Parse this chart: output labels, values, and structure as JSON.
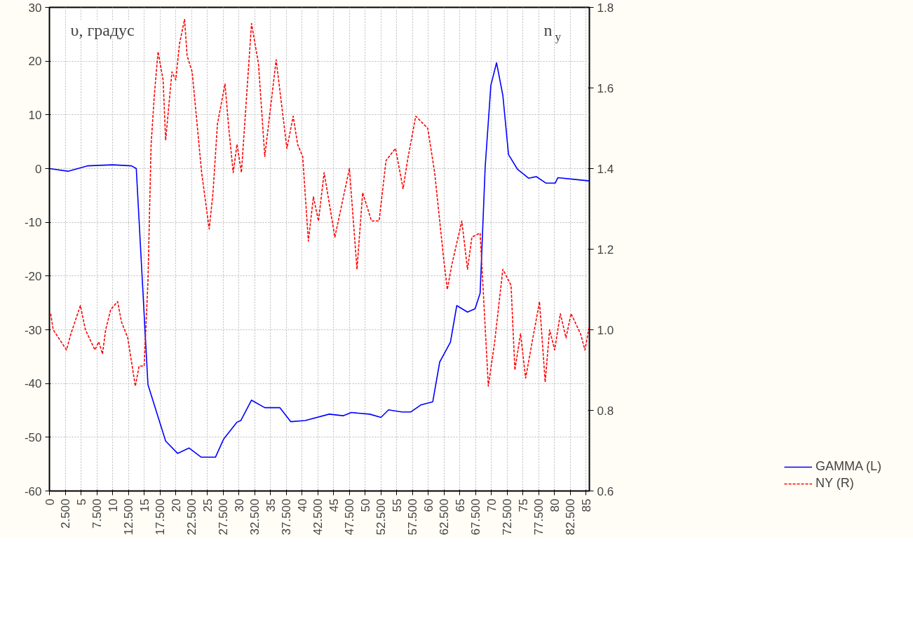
{
  "chart_data": {
    "type": "line",
    "ylabel": "υ, градус",
    "y2label": "n$_{y}$",
    "xlim": [
      0,
      85.5
    ],
    "xticks": [
      0,
      {
        "value": 2.5,
        "label": "2.500"
      },
      5,
      {
        "value": 7.5,
        "label": "7.500"
      },
      10,
      {
        "value": 12.5,
        "label": "12.500"
      },
      15,
      {
        "value": 17.5,
        "label": "17.500"
      },
      20,
      {
        "value": 22.5,
        "label": "22.500"
      },
      25,
      {
        "value": 27.5,
        "label": "27.500"
      },
      30,
      {
        "value": 32.5,
        "label": "32.500"
      },
      35,
      {
        "value": 37.5,
        "label": "37.500"
      },
      40,
      {
        "value": 42.5,
        "label": "42.500"
      },
      45,
      {
        "value": 47.5,
        "label": "47.500"
      },
      50,
      {
        "value": 52.5,
        "label": "52.500"
      },
      55,
      {
        "value": 57.5,
        "label": "57.500"
      },
      60,
      {
        "value": 62.5,
        "label": "62.500"
      },
      65,
      {
        "value": 67.5,
        "label": "67.500"
      },
      70,
      {
        "value": 72.5,
        "label": "72.500"
      },
      75,
      {
        "value": 77.5,
        "label": "77.500"
      },
      80,
      {
        "value": 82.5,
        "label": "82.500"
      },
      85
    ],
    "ylim": [
      -60,
      30
    ],
    "yticks": [
      -60,
      -50,
      -40,
      -30,
      -20,
      -10,
      0,
      10,
      20,
      30
    ],
    "y2lim": [
      0.6,
      1.8
    ],
    "y2ticks": [
      0.6,
      0.8,
      {
        "value": 1.0,
        "label": "1.0"
      },
      1.2,
      1.4,
      1.6,
      1.8
    ],
    "grid": true,
    "legend": "bottom right",
    "series": [
      {
        "name": "GAMMA (L)",
        "color": "#0000ff",
        "line_style": "solid",
        "x": [
          0,
          3,
          6,
          10,
          13,
          13.75,
          15.6,
          18.4,
          20.3,
          22.1,
          24,
          26.3,
          27.6,
          29.7,
          30.3,
          32,
          34.1,
          36.5,
          38.2,
          40.5,
          44.3,
          46.5,
          47.8,
          50.7,
          52.5,
          53.7,
          55.8,
          57.2,
          58.8,
          60.7,
          61.8,
          63.5,
          64.5,
          66.2,
          67.4,
          68.2,
          69,
          69.9,
          70.8,
          71.8,
          72.7,
          74.1,
          75.9,
          77.1,
          78.6,
          80.1,
          80.5,
          83.1,
          85.5
        ],
        "values": [
          0,
          -0.5,
          0.5,
          0.7,
          0.5,
          0,
          -40.2,
          -50.7,
          -53,
          -52,
          -53.7,
          -53.7,
          -50.3,
          -47.2,
          -46.9,
          -43.1,
          -44.5,
          -44.5,
          -47.1,
          -46.9,
          -45.7,
          -46,
          -45.4,
          -45.7,
          -46.3,
          -44.9,
          -45.3,
          -45.3,
          -44,
          -43.4,
          -36,
          -32.3,
          -25.5,
          -26.7,
          -26.1,
          -23.2,
          0.3,
          15.5,
          19.7,
          13.6,
          2.6,
          -0.1,
          -1.8,
          -1.5,
          -2.7,
          -2.7,
          -1.7,
          -2,
          -2.3
        ]
      },
      {
        "name": "NY (R)",
        "color": "#ff0000",
        "line_style": "dashed",
        "axis": "y2",
        "x": [
          0.2,
          0.6,
          2.7,
          3.4,
          4.9,
          5.7,
          7.2,
          7.8,
          8.4,
          8.9,
          9.7,
          10.8,
          11.4,
          12.4,
          13.6,
          14.2,
          15,
          15.6,
          16.1,
          16.6,
          17.2,
          18,
          18.4,
          19.4,
          20,
          20.6,
          21.4,
          21.8,
          22.6,
          24.1,
          25.3,
          25.9,
          26.6,
          27.8,
          28.4,
          29.1,
          29.7,
          30.4,
          32,
          33.1,
          34.1,
          35.9,
          37.6,
          38.6,
          39.3,
          40.1,
          41,
          41.8,
          42.6,
          43.5,
          45.2,
          47.5,
          48.7,
          49.6,
          51,
          52.2,
          53.3,
          54.8,
          56,
          56.7,
          58,
          59.9,
          61,
          62.4,
          63,
          63.7,
          65.3,
          66.2,
          66.9,
          68.2,
          69.5,
          70.5,
          71.8,
          73.1,
          73.7,
          74.6,
          75.4,
          77.6,
          78.5,
          79.2,
          80,
          80.9,
          81.8,
          82.6,
          84.1,
          84.8,
          85.5
        ],
        "values": [
          1.04,
          1.0,
          0.95,
          0.99,
          1.06,
          1.0,
          0.95,
          0.97,
          0.94,
          1.0,
          1.05,
          1.07,
          1.02,
          0.98,
          0.86,
          0.91,
          0.91,
          1.12,
          1.46,
          1.58,
          1.69,
          1.62,
          1.47,
          1.64,
          1.62,
          1.71,
          1.77,
          1.68,
          1.64,
          1.39,
          1.25,
          1.34,
          1.51,
          1.61,
          1.5,
          1.39,
          1.46,
          1.39,
          1.76,
          1.66,
          1.43,
          1.67,
          1.45,
          1.53,
          1.46,
          1.43,
          1.22,
          1.33,
          1.27,
          1.39,
          1.23,
          1.4,
          1.15,
          1.34,
          1.27,
          1.27,
          1.42,
          1.45,
          1.35,
          1.42,
          1.53,
          1.5,
          1.39,
          1.18,
          1.1,
          1.16,
          1.27,
          1.15,
          1.23,
          1.24,
          0.86,
          0.97,
          1.15,
          1.11,
          0.9,
          0.99,
          0.88,
          1.07,
          0.87,
          1.0,
          0.95,
          1.04,
          0.98,
          1.04,
          0.99,
          0.95,
          1.01
        ]
      }
    ]
  }
}
